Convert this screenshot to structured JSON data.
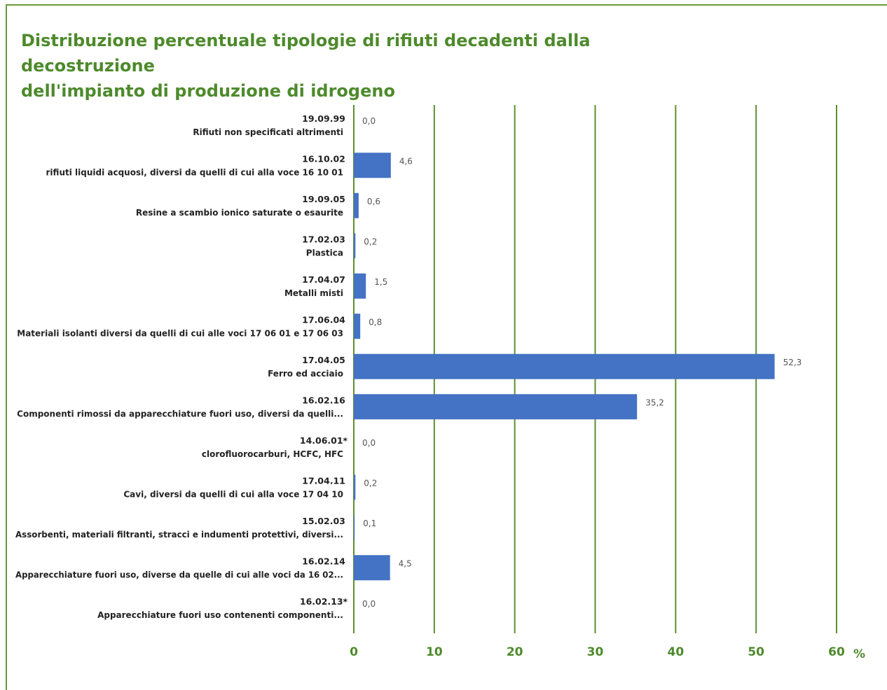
{
  "title_line1": "Distribuzione percentuale tipologie di rifiuti decadenti dalla decostruzione",
  "title_line2": "dell'impianto di produzione di idrogeno",
  "colors": {
    "bar": "#4472c4",
    "grid": "#5e8f30",
    "title": "#4e8a2c"
  },
  "chart_data": {
    "type": "bar",
    "orientation": "horizontal",
    "title": "Distribuzione percentuale tipologie di rifiuti decadenti dalla decostruzione dell'impianto di produzione di idrogeno",
    "xlabel": "%",
    "xlim": [
      0,
      60
    ],
    "xticks": [
      "0",
      "10",
      "20",
      "30",
      "40",
      "50",
      "60"
    ],
    "grid": "vertical",
    "categories": [
      {
        "code": "19.09.99",
        "desc": "Rifiuti non specificati altrimenti"
      },
      {
        "code": "16.10.02",
        "desc": "rifiuti liquidi acquosi, diversi da quelli di cui alla voce 16 10 01"
      },
      {
        "code": "19.09.05",
        "desc": "Resine a scambio ionico saturate o esaurite"
      },
      {
        "code": "17.02.03",
        "desc": "Plastica"
      },
      {
        "code": "17.04.07",
        "desc": "Metalli misti"
      },
      {
        "code": "17.06.04",
        "desc": "Materiali isolanti diversi da quelli di cui alle voci 17 06 01 e 17 06 03"
      },
      {
        "code": "17.04.05",
        "desc": "Ferro ed acciaio"
      },
      {
        "code": "16.02.16",
        "desc": "Componenti rimossi da apparecchiature fuori uso, diversi da quelli..."
      },
      {
        "code": "14.06.01*",
        "desc": "clorofluorocarburi, HCFC, HFC"
      },
      {
        "code": "17.04.11",
        "desc": "Cavi, diversi da quelli di cui alla voce 17 04 10"
      },
      {
        "code": "15.02.03",
        "desc": "Assorbenti, materiali filtranti, stracci e indumenti protettivi, diversi..."
      },
      {
        "code": "16.02.14",
        "desc": "Apparecchiature fuori uso, diverse da quelle di cui alle voci da 16 02..."
      },
      {
        "code": "16.02.13*",
        "desc": "Apparecchiature fuori uso contenenti componenti..."
      }
    ],
    "values": [
      0.0,
      4.6,
      0.6,
      0.2,
      1.5,
      0.8,
      52.3,
      35.2,
      0.0,
      0.2,
      0.1,
      4.5,
      0.0
    ],
    "value_labels": [
      "0,0",
      "4,6",
      "0,6",
      "0,2",
      "1,5",
      "0,8",
      "52,3",
      "35,2",
      "0,0",
      "0,2",
      "0,1",
      "4,5",
      "0,0"
    ]
  }
}
